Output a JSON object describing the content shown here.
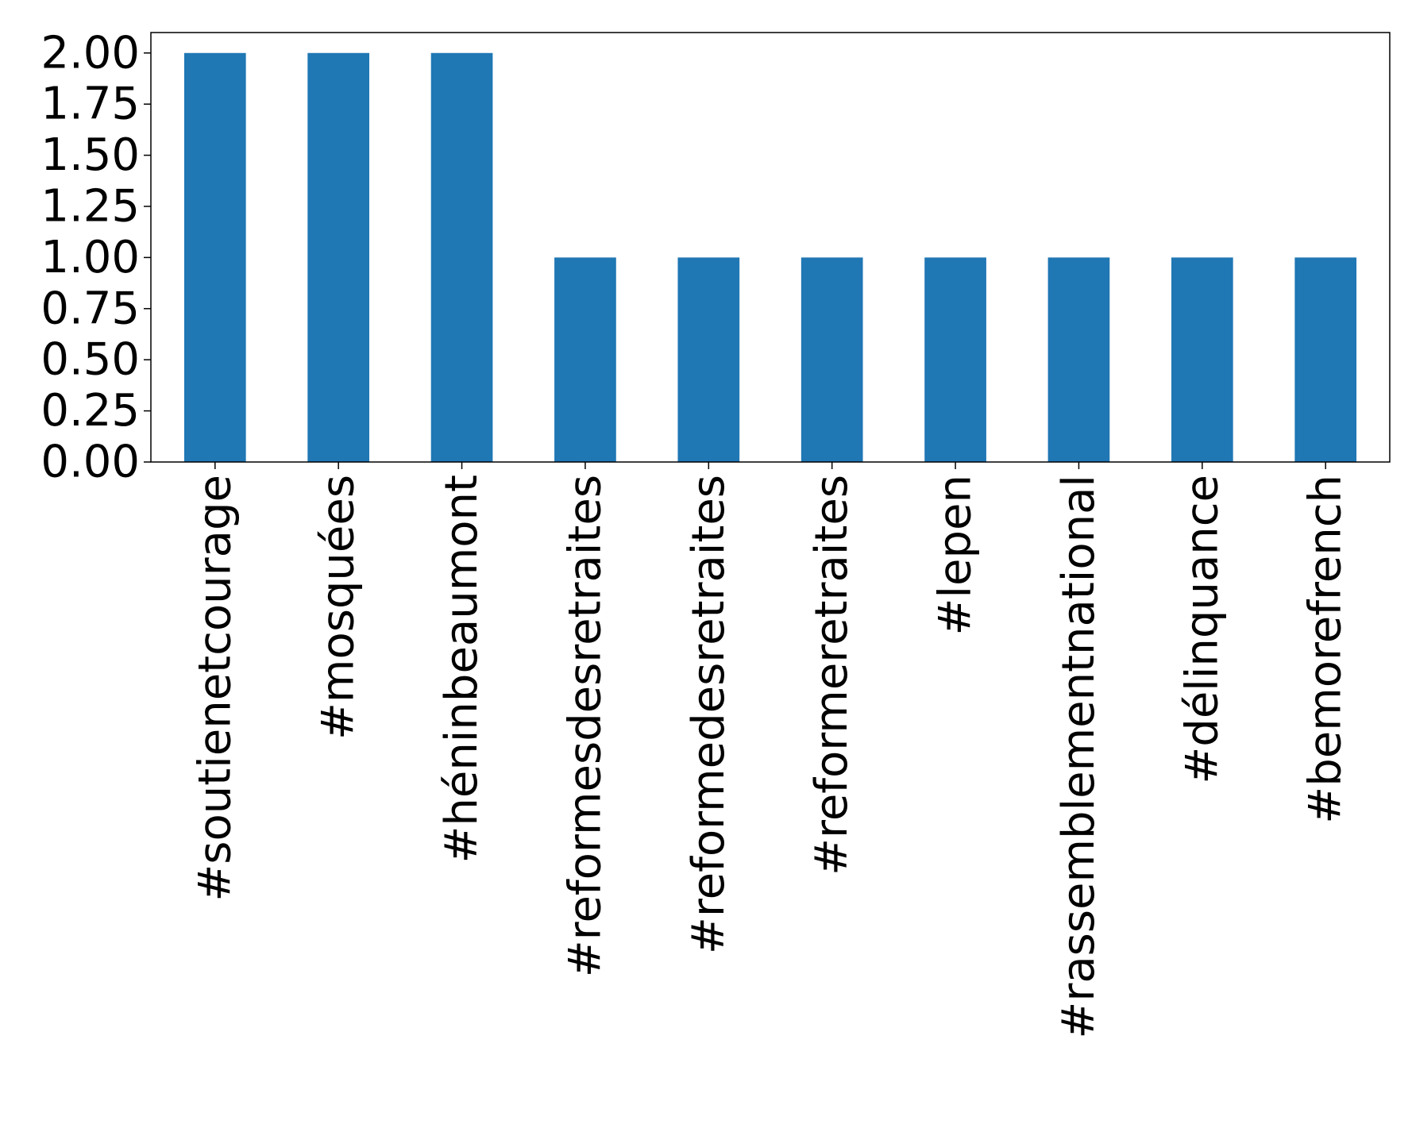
{
  "chart_data": {
    "type": "bar",
    "categories": [
      "#soutienetcourage",
      "#mosquées",
      "#héninbeaumont",
      "#reformesdesretraites",
      "#reformedesretraites",
      "#reformeretraites",
      "#lepen",
      "#rassemblementnational",
      "#délinquance",
      "#bemorefrench"
    ],
    "values": [
      2,
      2,
      2,
      1,
      1,
      1,
      1,
      1,
      1,
      1
    ],
    "title": "",
    "xlabel": "",
    "ylabel": "",
    "ylim": [
      0,
      2.1
    ],
    "yticks": [
      "0.00",
      "0.25",
      "0.50",
      "0.75",
      "1.00",
      "1.25",
      "1.50",
      "1.75",
      "2.00"
    ],
    "grid": false,
    "legend": "none",
    "bar_color": "#1f77b4"
  }
}
